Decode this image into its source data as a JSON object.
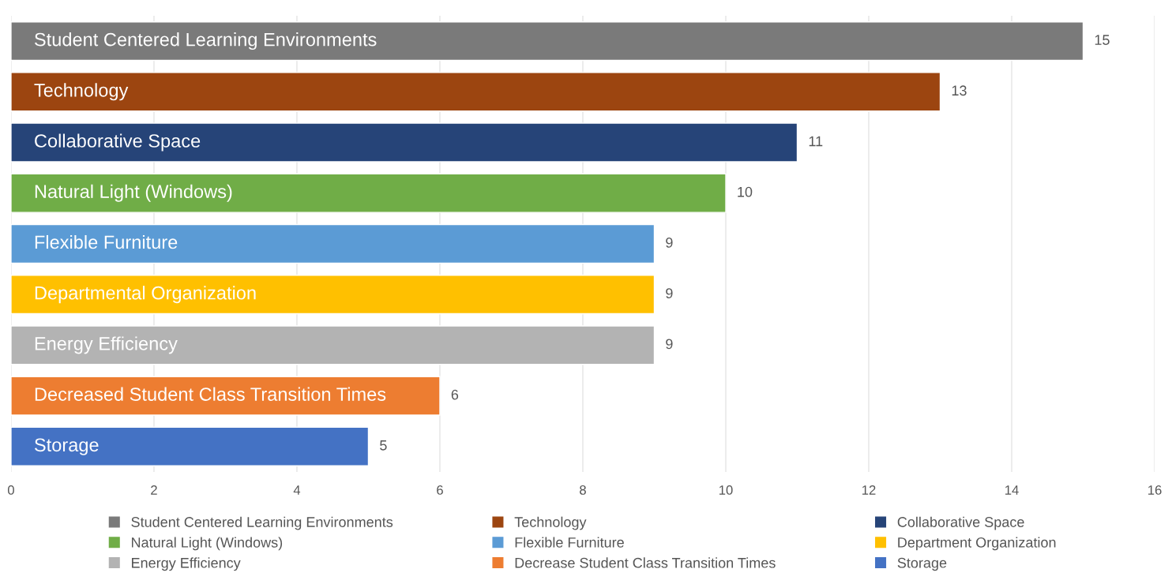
{
  "chart_data": {
    "type": "bar",
    "orientation": "horizontal",
    "categories": [
      "Student Centered Learning Environments",
      "Technology",
      "Collaborative Space",
      "Natural Light (Windows)",
      "Flexible Furniture",
      "Departmental Organization",
      "Energy Efficiency",
      "Decreased Student Class Transition Times",
      "Storage"
    ],
    "series": [
      {
        "name": "Student Centered Learning Environments",
        "color": "#7a7a7a",
        "values": [
          15,
          null,
          null,
          null,
          null,
          null,
          null,
          null,
          null
        ]
      },
      {
        "name": "Technology",
        "color": "#9c4510",
        "values": [
          null,
          13,
          null,
          null,
          null,
          null,
          null,
          null,
          null
        ]
      },
      {
        "name": "Collaborative Space",
        "color": "#264478",
        "values": [
          null,
          null,
          11,
          null,
          null,
          null,
          null,
          null,
          null
        ]
      },
      {
        "name": "Natural Light (Windows)",
        "color": "#70ad47",
        "values": [
          null,
          null,
          null,
          10,
          null,
          null,
          null,
          null,
          null
        ]
      },
      {
        "name": "Flexible Furniture",
        "color": "#5b9bd5",
        "values": [
          null,
          null,
          null,
          null,
          9,
          null,
          null,
          null,
          null
        ]
      },
      {
        "name": "Department Organization",
        "color": "#ffc000",
        "values": [
          null,
          null,
          null,
          null,
          null,
          9,
          null,
          null,
          null
        ]
      },
      {
        "name": "Energy Efficiency",
        "color": "#b3b3b3",
        "values": [
          null,
          null,
          null,
          null,
          null,
          null,
          9,
          null,
          null
        ]
      },
      {
        "name": "Decrease Student Class Transition Times",
        "color": "#ed7d31",
        "values": [
          null,
          null,
          null,
          null,
          null,
          null,
          null,
          6,
          null
        ]
      },
      {
        "name": "Storage",
        "color": "#4472c4",
        "values": [
          null,
          null,
          null,
          null,
          null,
          null,
          null,
          null,
          5
        ]
      }
    ],
    "xlim": [
      0,
      16
    ],
    "xticks": [
      0,
      2,
      4,
      6,
      8,
      10,
      12,
      14,
      16
    ],
    "grid": "x",
    "data_labels": true,
    "legend": "bottom"
  }
}
